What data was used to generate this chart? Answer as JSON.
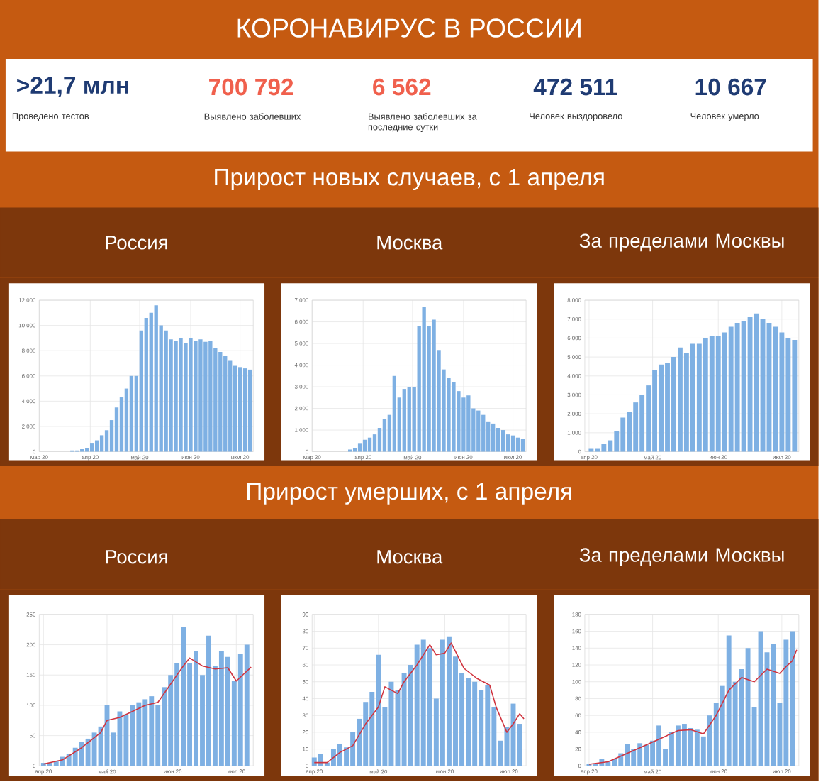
{
  "chart_data": [
    {
      "type": "other",
      "title": "КОРОНАВИРУС В РОССИИ",
      "annotations": [
        ">21,7 млн",
        "Проведено тестов",
        "700 792",
        "Выявлено заболевших",
        "6 562",
        "Выявлено заболевших за последние сутки",
        "472 511",
        "Человек выздоровело",
        "10 667",
        "Человек умерло"
      ]
    },
    {
      "type": "other",
      "title": "Прирост новых случаев, с 1 апреля"
    },
    {
      "type": "bar",
      "title": "Россия",
      "grid": true,
      "xlim": [
        "2020-03-01",
        "2020-07-09"
      ],
      "ylim": [
        0,
        12000
      ],
      "xticks": [
        {
          "value": "2020-03-01",
          "label": "мар 20"
        },
        {
          "value": "2020-04-01",
          "label": "апр 20"
        },
        {
          "value": "2020-05-01",
          "label": "май 20"
        },
        {
          "value": "2020-06-01",
          "label": "июн 20"
        },
        {
          "value": "2020-07-01",
          "label": "июл 20"
        }
      ],
      "yticks": [
        0,
        {
          "value": 2000,
          "label": "2 000"
        },
        {
          "value": 4000,
          "label": "4 000"
        },
        {
          "value": 6000,
          "label": "6 000"
        },
        {
          "value": 8000,
          "label": "8 000"
        },
        {
          "value": 10000,
          "label": "10 000"
        },
        {
          "value": 12000,
          "label": "12 000"
        }
      ],
      "series": [
        {
          "type": "bar",
          "color": "#7eb0e3",
          "x": [
            "2020-03-21",
            "2020-03-24",
            "2020-03-27",
            "2020-03-30",
            "2020-04-02",
            "2020-04-05",
            "2020-04-08",
            "2020-04-11",
            "2020-04-14",
            "2020-04-17",
            "2020-04-20",
            "2020-04-23",
            "2020-04-26",
            "2020-04-29",
            "2020-05-02",
            "2020-05-05",
            "2020-05-08",
            "2020-05-11",
            "2020-05-14",
            "2020-05-17",
            "2020-05-20",
            "2020-05-23",
            "2020-05-26",
            "2020-05-29",
            "2020-06-01",
            "2020-06-04",
            "2020-06-07",
            "2020-06-10",
            "2020-06-13",
            "2020-06-16",
            "2020-06-19",
            "2020-06-22",
            "2020-06-25",
            "2020-06-28",
            "2020-07-01",
            "2020-07-04",
            "2020-07-07"
          ],
          "values": [
            100,
            100,
            200,
            300,
            700,
            900,
            1300,
            1700,
            2500,
            3500,
            4300,
            5000,
            6000,
            6000,
            9600,
            10600,
            11000,
            11600,
            10000,
            9600,
            8900,
            8800,
            9000,
            8600,
            9000,
            8800,
            8900,
            8700,
            8800,
            8200,
            7900,
            7600,
            7200,
            6800,
            6700,
            6600,
            6500
          ]
        }
      ]
    },
    {
      "type": "bar",
      "title": "Москва",
      "grid": true,
      "xlim": [
        "2020-03-01",
        "2020-07-09"
      ],
      "ylim": [
        0,
        7000
      ],
      "xticks": [
        {
          "value": "2020-03-01",
          "label": "мар 20"
        },
        {
          "value": "2020-04-01",
          "label": "апр 20"
        },
        {
          "value": "2020-05-01",
          "label": "май 20"
        },
        {
          "value": "2020-06-01",
          "label": "июн 20"
        },
        {
          "value": "2020-07-01",
          "label": "июл 20"
        }
      ],
      "yticks": [
        0,
        {
          "value": 1000,
          "label": "1 000"
        },
        {
          "value": 2000,
          "label": "2 000"
        },
        {
          "value": 3000,
          "label": "3 000"
        },
        {
          "value": 4000,
          "label": "4 000"
        },
        {
          "value": 5000,
          "label": "5 000"
        },
        {
          "value": 6000,
          "label": "6 000"
        },
        {
          "value": 7000,
          "label": "7 000"
        }
      ],
      "series": [
        {
          "type": "bar",
          "color": "#7eb0e3",
          "x": [
            "2020-03-24",
            "2020-03-27",
            "2020-03-30",
            "2020-04-02",
            "2020-04-05",
            "2020-04-08",
            "2020-04-11",
            "2020-04-14",
            "2020-04-17",
            "2020-04-20",
            "2020-04-23",
            "2020-04-26",
            "2020-04-29",
            "2020-05-02",
            "2020-05-05",
            "2020-05-08",
            "2020-05-11",
            "2020-05-14",
            "2020-05-17",
            "2020-05-20",
            "2020-05-23",
            "2020-05-26",
            "2020-05-29",
            "2020-06-01",
            "2020-06-04",
            "2020-06-07",
            "2020-06-10",
            "2020-06-13",
            "2020-06-16",
            "2020-06-19",
            "2020-06-22",
            "2020-06-25",
            "2020-06-28",
            "2020-07-01",
            "2020-07-04",
            "2020-07-07"
          ],
          "values": [
            100,
            150,
            400,
            550,
            650,
            800,
            1100,
            1500,
            1700,
            3500,
            2500,
            2900,
            3000,
            3000,
            5800,
            6700,
            5800,
            6100,
            4700,
            3800,
            3400,
            3200,
            2800,
            2500,
            2600,
            2000,
            1900,
            1700,
            1400,
            1300,
            1100,
            1000,
            800,
            750,
            650,
            600
          ]
        }
      ]
    },
    {
      "type": "bar",
      "title": "За пределами Москвы",
      "grid": true,
      "xlim": [
        "2020-03-30",
        "2020-07-09"
      ],
      "ylim": [
        0,
        8000
      ],
      "xticks": [
        {
          "value": "2020-04-01",
          "label": "апр 20"
        },
        {
          "value": "2020-05-01",
          "label": "май 20"
        },
        {
          "value": "2020-06-01",
          "label": "июн 20"
        },
        {
          "value": "2020-07-01",
          "label": "июл 20"
        }
      ],
      "yticks": [
        0,
        {
          "value": 1000,
          "label": "1 000"
        },
        {
          "value": 2000,
          "label": "2 000"
        },
        {
          "value": 3000,
          "label": "3 000"
        },
        {
          "value": 4000,
          "label": "4 000"
        },
        {
          "value": 5000,
          "label": "5 000"
        },
        {
          "value": 6000,
          "label": "6 000"
        },
        {
          "value": 7000,
          "label": "7 000"
        },
        {
          "value": 8000,
          "label": "8 000"
        }
      ],
      "series": [
        {
          "type": "bar",
          "color": "#7eb0e3",
          "x": [
            "2020-04-02",
            "2020-04-05",
            "2020-04-08",
            "2020-04-11",
            "2020-04-14",
            "2020-04-17",
            "2020-04-20",
            "2020-04-23",
            "2020-04-26",
            "2020-04-29",
            "2020-05-02",
            "2020-05-05",
            "2020-05-08",
            "2020-05-11",
            "2020-05-14",
            "2020-05-17",
            "2020-05-20",
            "2020-05-23",
            "2020-05-26",
            "2020-05-29",
            "2020-06-01",
            "2020-06-04",
            "2020-06-07",
            "2020-06-10",
            "2020-06-13",
            "2020-06-16",
            "2020-06-19",
            "2020-06-22",
            "2020-06-25",
            "2020-06-28",
            "2020-07-01",
            "2020-07-04",
            "2020-07-07"
          ],
          "values": [
            150,
            150,
            400,
            600,
            1100,
            1800,
            2100,
            2600,
            3000,
            3500,
            4300,
            4600,
            4700,
            5000,
            5500,
            5200,
            5700,
            5700,
            6000,
            6100,
            6100,
            6300,
            6600,
            6800,
            6900,
            7100,
            7300,
            7000,
            6800,
            6600,
            6300,
            6000,
            5900
          ]
        }
      ]
    },
    {
      "type": "other",
      "title": "Прирост умерших, с 1 апреля"
    },
    {
      "type": "bar",
      "title": "Россия",
      "grid": true,
      "xlim": [
        "2020-03-30",
        "2020-07-09"
      ],
      "ylim": [
        0,
        250
      ],
      "xticks": [
        {
          "value": "2020-04-01",
          "label": "апр 20"
        },
        {
          "value": "2020-05-01",
          "label": "май 20"
        },
        {
          "value": "2020-06-01",
          "label": "июн 20"
        },
        {
          "value": "2020-07-01",
          "label": "июл 20"
        }
      ],
      "yticks": [
        0,
        50,
        100,
        150,
        200,
        250
      ],
      "series": [
        {
          "type": "bar",
          "color": "#7eb0e3",
          "x": [
            "2020-04-01",
            "2020-04-04",
            "2020-04-07",
            "2020-04-10",
            "2020-04-13",
            "2020-04-16",
            "2020-04-19",
            "2020-04-22",
            "2020-04-25",
            "2020-04-28",
            "2020-05-01",
            "2020-05-04",
            "2020-05-07",
            "2020-05-10",
            "2020-05-13",
            "2020-05-16",
            "2020-05-19",
            "2020-05-22",
            "2020-05-25",
            "2020-05-28",
            "2020-05-31",
            "2020-06-03",
            "2020-06-06",
            "2020-06-09",
            "2020-06-12",
            "2020-06-15",
            "2020-06-18",
            "2020-06-21",
            "2020-06-24",
            "2020-06-27",
            "2020-06-30",
            "2020-07-03",
            "2020-07-06"
          ],
          "values": [
            5,
            5,
            8,
            15,
            20,
            30,
            40,
            45,
            55,
            65,
            100,
            55,
            90,
            85,
            100,
            105,
            110,
            115,
            100,
            130,
            150,
            170,
            230,
            170,
            190,
            150,
            215,
            165,
            190,
            180,
            140,
            185,
            200
          ]
        },
        {
          "type": "line",
          "color": "#d0343f",
          "x": [
            "2020-04-01",
            "2020-04-10",
            "2020-04-19",
            "2020-04-28",
            "2020-05-01",
            "2020-05-07",
            "2020-05-13",
            "2020-05-19",
            "2020-05-25",
            "2020-05-31",
            "2020-06-06",
            "2020-06-09",
            "2020-06-15",
            "2020-06-21",
            "2020-06-27",
            "2020-07-01",
            "2020-07-04",
            "2020-07-08"
          ],
          "values": [
            3,
            10,
            30,
            55,
            75,
            80,
            90,
            100,
            105,
            135,
            165,
            178,
            165,
            160,
            162,
            140,
            150,
            163
          ]
        }
      ]
    },
    {
      "type": "bar",
      "title": "Москва",
      "grid": true,
      "xlim": [
        "2020-03-31",
        "2020-07-09"
      ],
      "ylim": [
        0,
        90
      ],
      "xticks": [
        {
          "value": "2020-04-01",
          "label": "апр 20"
        },
        {
          "value": "2020-05-01",
          "label": "май 20"
        },
        {
          "value": "2020-06-01",
          "label": "июн 20"
        },
        {
          "value": "2020-07-01",
          "label": "июл 20"
        }
      ],
      "yticks": [
        0,
        10,
        20,
        30,
        40,
        50,
        60,
        70,
        80,
        90
      ],
      "series": [
        {
          "type": "bar",
          "color": "#7eb0e3",
          "x": [
            "2020-04-01",
            "2020-04-04",
            "2020-04-07",
            "2020-04-10",
            "2020-04-13",
            "2020-04-16",
            "2020-04-19",
            "2020-04-22",
            "2020-04-25",
            "2020-04-28",
            "2020-05-01",
            "2020-05-04",
            "2020-05-07",
            "2020-05-10",
            "2020-05-13",
            "2020-05-16",
            "2020-05-19",
            "2020-05-22",
            "2020-05-25",
            "2020-05-28",
            "2020-05-31",
            "2020-06-03",
            "2020-06-06",
            "2020-06-09",
            "2020-06-12",
            "2020-06-15",
            "2020-06-18",
            "2020-06-21",
            "2020-06-24",
            "2020-06-27",
            "2020-06-30",
            "2020-07-03",
            "2020-07-06"
          ],
          "values": [
            5,
            7,
            2,
            10,
            13,
            11,
            20,
            28,
            38,
            44,
            66,
            35,
            50,
            45,
            55,
            60,
            72,
            75,
            70,
            40,
            75,
            77,
            65,
            55,
            52,
            50,
            45,
            48,
            35,
            15,
            23,
            37,
            25
          ]
        },
        {
          "type": "line",
          "color": "#d0343f",
          "x": [
            "2020-04-01",
            "2020-04-07",
            "2020-04-13",
            "2020-04-19",
            "2020-04-25",
            "2020-05-01",
            "2020-05-04",
            "2020-05-10",
            "2020-05-13",
            "2020-05-19",
            "2020-05-25",
            "2020-05-28",
            "2020-06-01",
            "2020-06-04",
            "2020-06-10",
            "2020-06-16",
            "2020-06-22",
            "2020-06-25",
            "2020-06-30",
            "2020-07-03",
            "2020-07-06",
            "2020-07-08"
          ],
          "values": [
            2,
            2,
            8,
            12,
            25,
            35,
            47,
            43,
            50,
            60,
            72,
            66,
            67,
            73,
            58,
            52,
            48,
            35,
            20,
            25,
            31,
            28
          ]
        }
      ]
    },
    {
      "type": "bar",
      "title": "За пределами Москвы",
      "grid": true,
      "xlim": [
        "2020-03-30",
        "2020-07-09"
      ],
      "ylim": [
        0,
        180
      ],
      "xticks": [
        {
          "value": "2020-04-01",
          "label": "апр 20"
        },
        {
          "value": "2020-05-01",
          "label": "май 20"
        },
        {
          "value": "2020-06-01",
          "label": "июн 20"
        },
        {
          "value": "2020-07-01",
          "label": "июл 20"
        }
      ],
      "yticks": [
        0,
        20,
        40,
        60,
        80,
        100,
        120,
        140,
        160,
        180
      ],
      "series": [
        {
          "type": "bar",
          "color": "#7eb0e3",
          "x": [
            "2020-04-01",
            "2020-04-04",
            "2020-04-07",
            "2020-04-10",
            "2020-04-13",
            "2020-04-16",
            "2020-04-19",
            "2020-04-22",
            "2020-04-25",
            "2020-04-28",
            "2020-05-01",
            "2020-05-04",
            "2020-05-07",
            "2020-05-10",
            "2020-05-13",
            "2020-05-16",
            "2020-05-19",
            "2020-05-22",
            "2020-05-25",
            "2020-05-28",
            "2020-05-31",
            "2020-06-03",
            "2020-06-06",
            "2020-06-09",
            "2020-06-12",
            "2020-06-15",
            "2020-06-18",
            "2020-06-21",
            "2020-06-24",
            "2020-06-27",
            "2020-06-30",
            "2020-07-03",
            "2020-07-06"
          ],
          "values": [
            2,
            2,
            8,
            5,
            8,
            15,
            26,
            20,
            27,
            25,
            30,
            48,
            20,
            40,
            48,
            50,
            45,
            43,
            35,
            60,
            75,
            95,
            155,
            100,
            115,
            140,
            70,
            160,
            135,
            145,
            75,
            150,
            160
          ]
        },
        {
          "type": "line",
          "color": "#d0343f",
          "x": [
            "2020-04-01",
            "2020-04-10",
            "2020-04-19",
            "2020-04-28",
            "2020-05-07",
            "2020-05-13",
            "2020-05-19",
            "2020-05-25",
            "2020-05-31",
            "2020-06-06",
            "2020-06-12",
            "2020-06-18",
            "2020-06-24",
            "2020-06-30",
            "2020-07-03",
            "2020-07-06",
            "2020-07-08"
          ],
          "values": [
            2,
            5,
            15,
            25,
            35,
            42,
            43,
            38,
            60,
            90,
            105,
            100,
            115,
            110,
            118,
            125,
            138
          ]
        }
      ]
    }
  ]
}
